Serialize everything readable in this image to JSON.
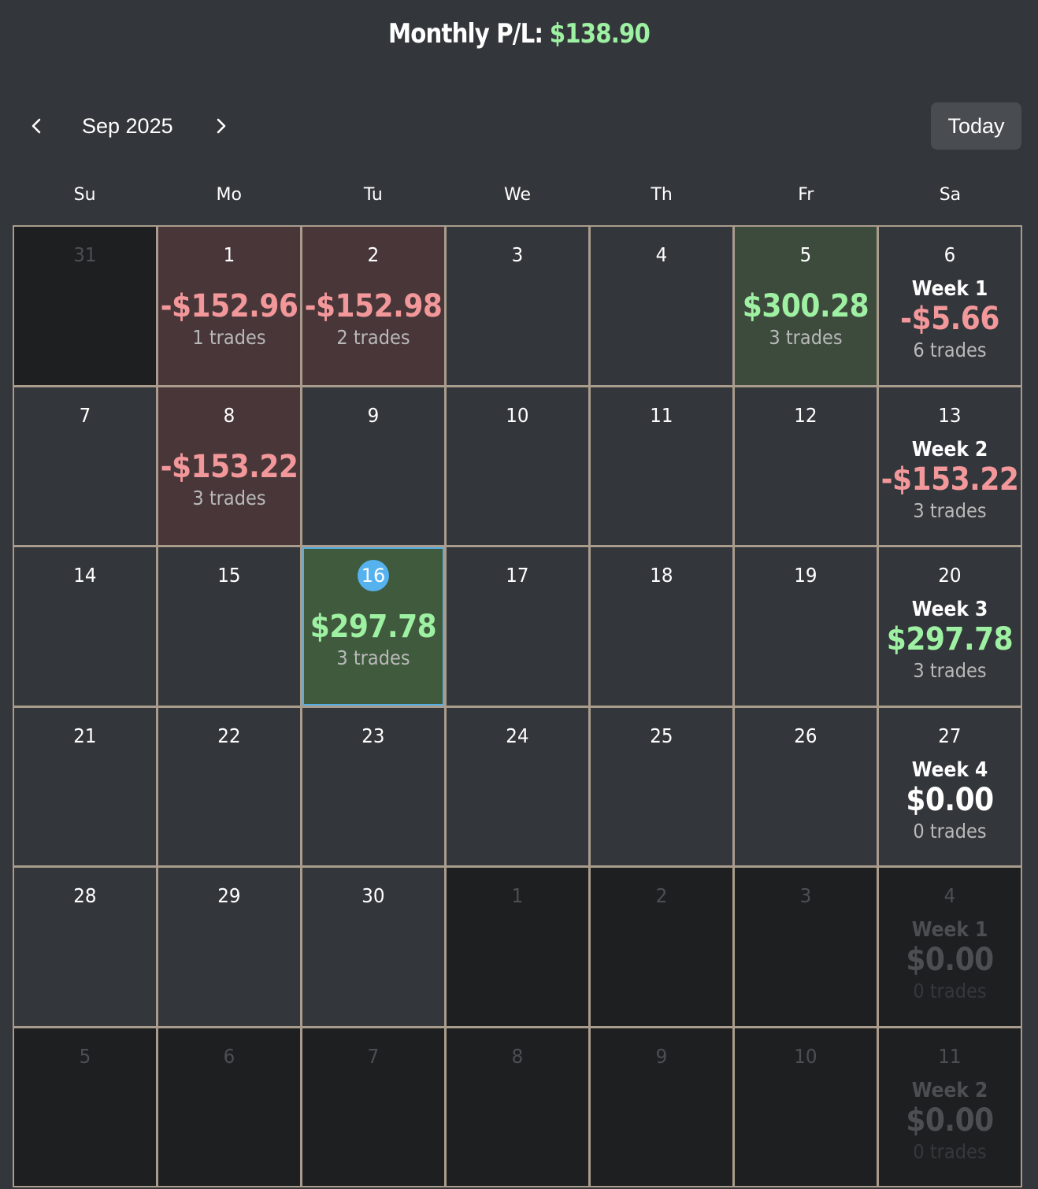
{
  "header": {
    "label": "Monthly P/L:",
    "value": "$138.90"
  },
  "nav": {
    "prev_icon": "chevron-left-icon",
    "month_label": "Sep 2025",
    "next_icon": "chevron-right-icon",
    "today_label": "Today"
  },
  "weekdays": [
    "Su",
    "Mo",
    "Tu",
    "We",
    "Th",
    "Fr",
    "Sa"
  ],
  "colors": {
    "gain": "#9ef0a2",
    "loss": "#f2979a",
    "today_badge": "#55b2ee",
    "grid_border": "#a99c8c"
  },
  "rows": [
    [
      {
        "day": "31",
        "outside": true
      },
      {
        "day": "1",
        "pnl": "-$152.96",
        "trades": "1 trades",
        "tone": "loss"
      },
      {
        "day": "2",
        "pnl": "-$152.98",
        "trades": "2 trades",
        "tone": "loss"
      },
      {
        "day": "3"
      },
      {
        "day": "4"
      },
      {
        "day": "5",
        "pnl": "$300.28",
        "trades": "3 trades",
        "tone": "gain"
      },
      {
        "day": "6",
        "week": "Week 1",
        "pnl": "-$5.66",
        "trades": "6 trades",
        "tone": "loss"
      }
    ],
    [
      {
        "day": "7"
      },
      {
        "day": "8",
        "pnl": "-$153.22",
        "trades": "3 trades",
        "tone": "loss"
      },
      {
        "day": "9"
      },
      {
        "day": "10"
      },
      {
        "day": "11"
      },
      {
        "day": "12"
      },
      {
        "day": "13",
        "week": "Week 2",
        "pnl": "-$153.22",
        "trades": "3 trades",
        "tone": "loss"
      }
    ],
    [
      {
        "day": "14"
      },
      {
        "day": "15"
      },
      {
        "day": "16",
        "pnl": "$297.78",
        "trades": "3 trades",
        "tone": "gain",
        "today": true
      },
      {
        "day": "17"
      },
      {
        "day": "18"
      },
      {
        "day": "19"
      },
      {
        "day": "20",
        "week": "Week 3",
        "pnl": "$297.78",
        "trades": "3 trades",
        "tone": "gain"
      }
    ],
    [
      {
        "day": "21"
      },
      {
        "day": "22"
      },
      {
        "day": "23"
      },
      {
        "day": "24"
      },
      {
        "day": "25"
      },
      {
        "day": "26"
      },
      {
        "day": "27",
        "week": "Week 4",
        "pnl": "$0.00",
        "trades": "0 trades",
        "tone": "zero"
      }
    ],
    [
      {
        "day": "28"
      },
      {
        "day": "29"
      },
      {
        "day": "30"
      },
      {
        "day": "1",
        "outside": true
      },
      {
        "day": "2",
        "outside": true
      },
      {
        "day": "3",
        "outside": true
      },
      {
        "day": "4",
        "outside": true,
        "week": "Week 1",
        "pnl": "$0.00",
        "trades": "0 trades",
        "tone": "zero"
      }
    ],
    [
      {
        "day": "5",
        "outside": true
      },
      {
        "day": "6",
        "outside": true
      },
      {
        "day": "7",
        "outside": true
      },
      {
        "day": "8",
        "outside": true
      },
      {
        "day": "9",
        "outside": true
      },
      {
        "day": "10",
        "outside": true
      },
      {
        "day": "11",
        "outside": true,
        "week": "Week 2",
        "pnl": "$0.00",
        "trades": "0 trades",
        "tone": "zero"
      }
    ]
  ]
}
